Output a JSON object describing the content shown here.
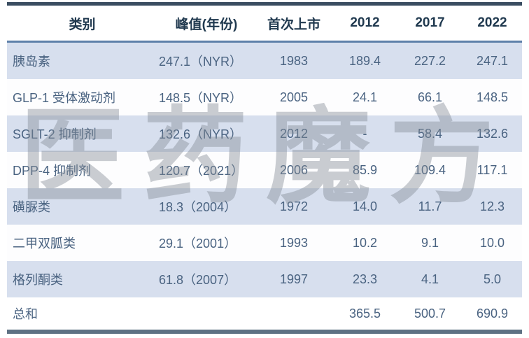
{
  "chart_data": {
    "type": "table",
    "columns": [
      "类别",
      "峰值(年份)",
      "首次上市",
      "2012",
      "2017",
      "2022"
    ],
    "rows": [
      {
        "cells": [
          "胰岛素",
          "247.1（NYR）",
          "1983",
          "189.4",
          "227.2",
          "247.1"
        ]
      },
      {
        "cells": [
          "GLP-1 受体激动剂",
          "148.5（NYR）",
          "2005",
          "24.1",
          "66.1",
          "148.5"
        ]
      },
      {
        "cells": [
          "SGLT-2 抑制剂",
          "132.6（NYR）",
          "2012",
          "-",
          "58.4",
          "132.6"
        ]
      },
      {
        "cells": [
          "DPP-4 抑制剂",
          "120.7（2021）",
          "2006",
          "85.9",
          "109.4",
          "117.1"
        ]
      },
      {
        "cells": [
          "磺脲类",
          "18.3（2004）",
          "1972",
          "14.0",
          "11.7",
          "12.3"
        ]
      },
      {
        "cells": [
          "二甲双胍类",
          "29.1（2001）",
          "1993",
          "10.2",
          "9.1",
          "10.0"
        ]
      },
      {
        "cells": [
          "格列酮类",
          "61.8（2007）",
          "1997",
          "23.3",
          "4.1",
          "5.0"
        ]
      },
      {
        "cells": [
          "总和",
          "",
          "",
          "365.5",
          "500.7",
          "690.9"
        ]
      }
    ],
    "legend_position": "none",
    "grid": "off"
  },
  "watermark": {
    "text": "医药魔方"
  },
  "colors": {
    "top_border": "#3a4d61",
    "header_separator": "#5e80a9",
    "bottom_border": "#5e7183",
    "striped_row_background": "#d7dfee",
    "plain_row_background": "#fdfdfe",
    "header_text": "#20394f",
    "data_text": "#4a6381",
    "watermark_gray": "#828a94"
  }
}
